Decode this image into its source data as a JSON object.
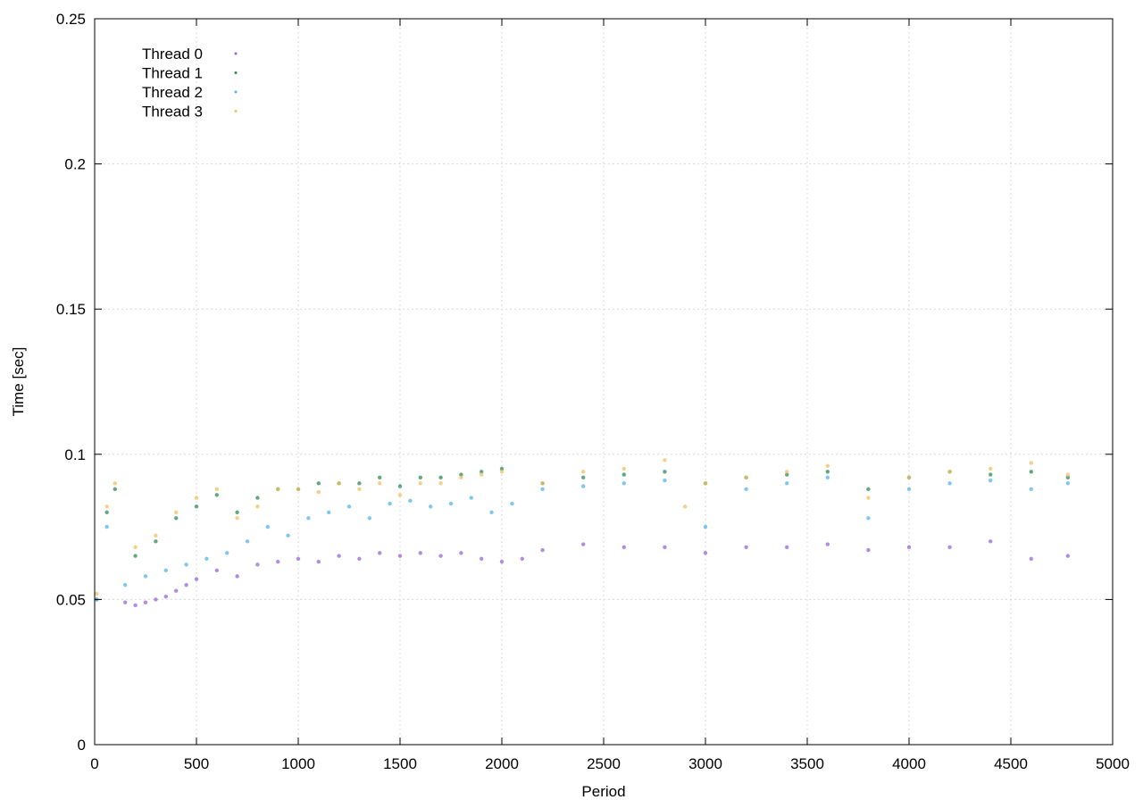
{
  "chart_data": {
    "type": "scatter",
    "title": "",
    "xlabel": "Period",
    "ylabel": "Time [sec]",
    "xlim": [
      0,
      5000
    ],
    "ylim": [
      0,
      0.25
    ],
    "x_ticks": [
      0,
      500,
      1000,
      1500,
      2000,
      2500,
      3000,
      3500,
      4000,
      4500,
      5000
    ],
    "y_ticks": [
      0,
      0.05,
      0.1,
      0.15,
      0.2,
      0.25
    ],
    "x_tick_labels": [
      "0",
      "500",
      "1000",
      "1500",
      "2000",
      "2500",
      "3000",
      "3500",
      "4000",
      "4500",
      "5000"
    ],
    "y_tick_labels": [
      "0",
      "0.05",
      "0.1",
      "0.15",
      "0.2",
      "0.25"
    ],
    "grid": true,
    "legend_position": "top-left",
    "series": [
      {
        "name": "Thread 0",
        "color": "#9467d4",
        "x": [
          150,
          200,
          250,
          300,
          350,
          400,
          450,
          500,
          600,
          700,
          800,
          900,
          1000,
          1100,
          1200,
          1300,
          1400,
          1500,
          1600,
          1700,
          1800,
          1900,
          2000,
          2100,
          2200,
          2400,
          2600,
          2800,
          3000,
          3200,
          3400,
          3600,
          3800,
          4000,
          4200,
          4400,
          4600,
          4780
        ],
        "y": [
          0.049,
          0.048,
          0.049,
          0.05,
          0.051,
          0.053,
          0.055,
          0.057,
          0.06,
          0.058,
          0.062,
          0.063,
          0.064,
          0.063,
          0.065,
          0.064,
          0.066,
          0.065,
          0.066,
          0.065,
          0.066,
          0.064,
          0.063,
          0.064,
          0.067,
          0.069,
          0.068,
          0.068,
          0.066,
          0.068,
          0.068,
          0.069,
          0.067,
          0.068,
          0.068,
          0.07,
          0.064,
          0.065
        ]
      },
      {
        "name": "Thread 1",
        "color": "#2e8b57",
        "x": [
          10,
          60,
          100,
          200,
          300,
          400,
          500,
          600,
          700,
          800,
          900,
          1000,
          1100,
          1200,
          1300,
          1400,
          1500,
          1600,
          1700,
          1800,
          1900,
          2000,
          2200,
          2400,
          2600,
          2800,
          3000,
          3200,
          3400,
          3600,
          3800,
          4000,
          4200,
          4400,
          4600,
          4780
        ],
        "y": [
          0.05,
          0.08,
          0.088,
          0.065,
          0.07,
          0.078,
          0.082,
          0.086,
          0.08,
          0.085,
          0.088,
          0.088,
          0.09,
          0.09,
          0.09,
          0.092,
          0.089,
          0.092,
          0.092,
          0.093,
          0.094,
          0.095,
          0.09,
          0.092,
          0.093,
          0.094,
          0.09,
          0.092,
          0.093,
          0.094,
          0.088,
          0.092,
          0.094,
          0.093,
          0.094,
          0.092
        ]
      },
      {
        "name": "Thread 2",
        "color": "#56b4e9",
        "x": [
          10,
          60,
          150,
          250,
          350,
          450,
          550,
          650,
          750,
          850,
          950,
          1050,
          1150,
          1250,
          1350,
          1450,
          1550,
          1650,
          1750,
          1850,
          1950,
          2050,
          2200,
          2400,
          2600,
          2800,
          3000,
          3200,
          3400,
          3600,
          3800,
          4000,
          4200,
          4400,
          4600,
          4780
        ],
        "y": [
          0.05,
          0.075,
          0.055,
          0.058,
          0.06,
          0.062,
          0.064,
          0.066,
          0.07,
          0.075,
          0.072,
          0.078,
          0.08,
          0.082,
          0.078,
          0.083,
          0.084,
          0.082,
          0.083,
          0.085,
          0.08,
          0.083,
          0.088,
          0.089,
          0.09,
          0.091,
          0.075,
          0.088,
          0.09,
          0.092,
          0.078,
          0.088,
          0.09,
          0.091,
          0.088,
          0.09
        ]
      },
      {
        "name": "Thread 3",
        "color": "#f0c060",
        "x": [
          10,
          60,
          100,
          200,
          300,
          400,
          500,
          600,
          700,
          800,
          900,
          1000,
          1100,
          1200,
          1300,
          1400,
          1500,
          1600,
          1700,
          1800,
          1900,
          2000,
          2200,
          2400,
          2600,
          2800,
          2900,
          3000,
          3200,
          3400,
          3600,
          3800,
          4000,
          4200,
          4400,
          4600,
          4780
        ],
        "y": [
          0.052,
          0.082,
          0.09,
          0.068,
          0.072,
          0.08,
          0.085,
          0.088,
          0.078,
          0.082,
          0.088,
          0.088,
          0.087,
          0.09,
          0.088,
          0.09,
          0.086,
          0.09,
          0.09,
          0.092,
          0.093,
          0.094,
          0.09,
          0.094,
          0.095,
          0.098,
          0.082,
          0.09,
          0.092,
          0.094,
          0.096,
          0.085,
          0.092,
          0.094,
          0.095,
          0.097,
          0.093
        ]
      }
    ]
  }
}
